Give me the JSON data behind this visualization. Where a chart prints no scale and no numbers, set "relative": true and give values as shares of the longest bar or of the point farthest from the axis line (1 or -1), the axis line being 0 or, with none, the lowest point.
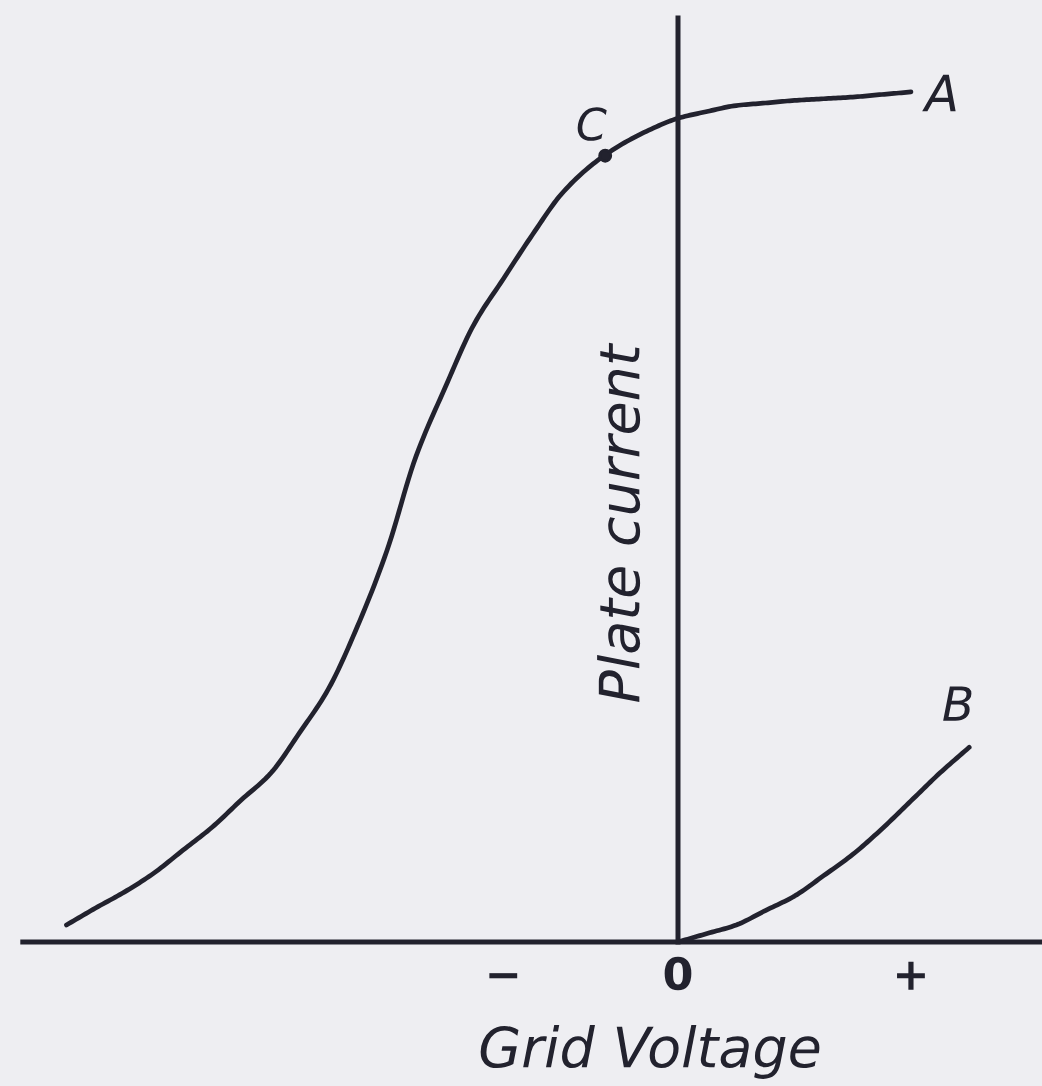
{
  "chart_data": {
    "type": "line",
    "relative": true,
    "xlabel": "Grid Voltage",
    "ylabel": "Plate current",
    "categories": [
      null,
      null,
      null,
      null,
      null,
      null,
      null,
      null,
      null,
      null,
      null,
      null,
      null,
      null,
      null,
      null,
      "−",
      null,
      null,
      null,
      null,
      null,
      "0",
      null,
      null,
      null,
      null,
      null,
      null,
      null,
      "+",
      null,
      null,
      null,
      null
    ],
    "series": [
      {
        "name": "A",
        "color": "#22222e",
        "values": [
          null,
          0.02,
          0.04,
          0.059,
          0.081,
          0.108,
          0.135,
          0.167,
          0.198,
          0.246,
          0.298,
          0.372,
          0.46,
          0.571,
          0.652,
          0.727,
          0.78,
          0.832,
          0.88,
          0.913,
          0.937,
          0.955,
          0.969,
          0.977,
          0.984,
          0.987,
          0.99,
          0.992,
          0.994,
          0.997,
          1.0,
          null,
          null,
          null,
          null
        ]
      },
      {
        "name": "B",
        "color": "#22222e",
        "values": [
          null,
          null,
          null,
          null,
          null,
          null,
          null,
          null,
          null,
          null,
          null,
          null,
          null,
          null,
          null,
          null,
          null,
          null,
          null,
          null,
          null,
          null,
          0,
          0.01,
          0.02,
          0.037,
          0.054,
          0.078,
          0.103,
          0.133,
          0.166,
          0.199,
          0.229,
          null,
          null
        ]
      }
    ],
    "annotations": [
      {
        "text": "C",
        "y": 0.925
      }
    ]
  }
}
